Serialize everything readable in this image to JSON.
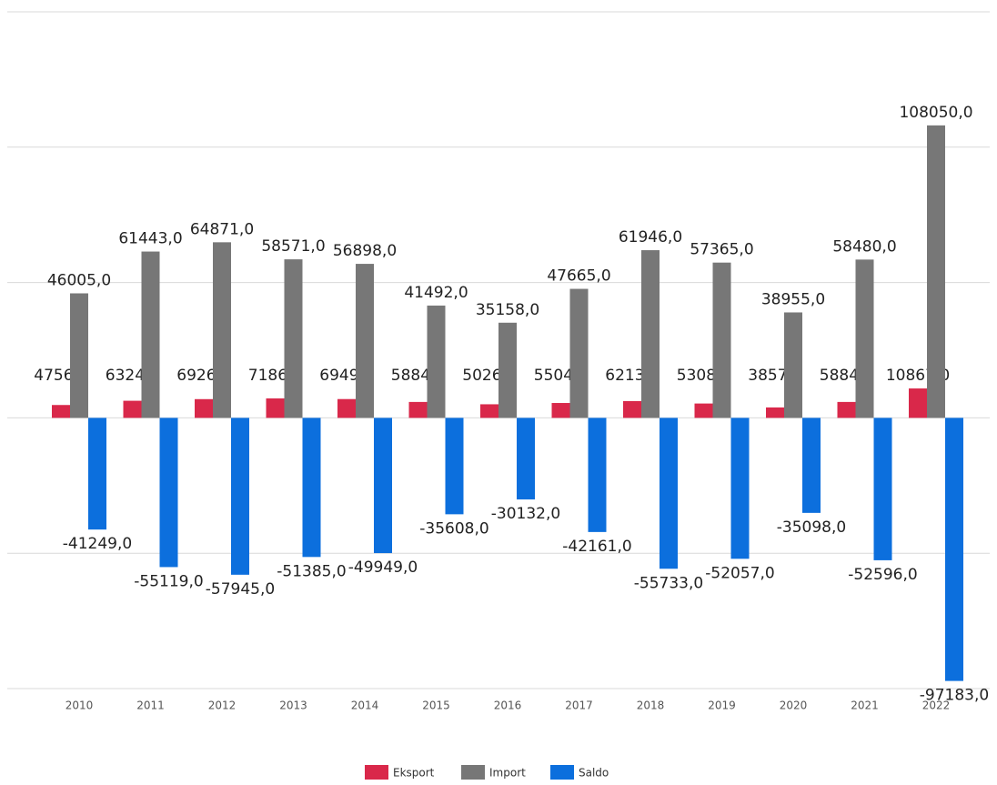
{
  "chart_data": {
    "type": "bar",
    "categories": [
      "2010",
      "2011",
      "2012",
      "2013",
      "2014",
      "2015",
      "2016",
      "2017",
      "2018",
      "2019",
      "2020",
      "2021",
      "2022"
    ],
    "series": [
      {
        "name": "Eksport",
        "color": "#d9284a",
        "values": [
          4756,
          6324,
          6926,
          7186,
          6949,
          5884,
          5026,
          5504,
          6213,
          5308,
          3857,
          5884,
          10867
        ],
        "value_labels": [
          "4756,0",
          "6324,0",
          "6926,0",
          "7186,0",
          "6949,0",
          "5884,0",
          "5026,0",
          "5504,0",
          "6213,0",
          "5308,0",
          "3857,0",
          "5884,0",
          "10867,0"
        ]
      },
      {
        "name": "Import",
        "color": "#777777",
        "values": [
          46005,
          61443,
          64871,
          58571,
          56898,
          41492,
          35158,
          47665,
          61946,
          57365,
          38955,
          58480,
          108050
        ],
        "value_labels": [
          "46005,0",
          "61443,0",
          "64871,0",
          "58571,0",
          "56898,0",
          "41492,0",
          "35158,0",
          "47665,0",
          "61946,0",
          "57365,0",
          "38955,0",
          "58480,0",
          "108050,0"
        ]
      },
      {
        "name": "Saldo",
        "color": "#0c6fdd",
        "values": [
          -41249,
          -55119,
          -57945,
          -51385,
          -49949,
          -35608,
          -30132,
          -42161,
          -55733,
          -52057,
          -35098,
          -52596,
          -97183
        ],
        "value_labels": [
          "-41249,0",
          "-55119,0",
          "-57945,0",
          "-51385,0",
          "-49949,0",
          "-35608,0",
          "-30132,0",
          "-42161,0",
          "-55733,0",
          "-52057,0",
          "-35098,0",
          "-52596,0",
          "-97183,0"
        ]
      }
    ],
    "ylim": [
      -100000,
      150000
    ],
    "yticks": [
      -100000,
      -50000,
      0,
      50000,
      100000,
      150000
    ],
    "grid": true,
    "legend": "bottom"
  }
}
